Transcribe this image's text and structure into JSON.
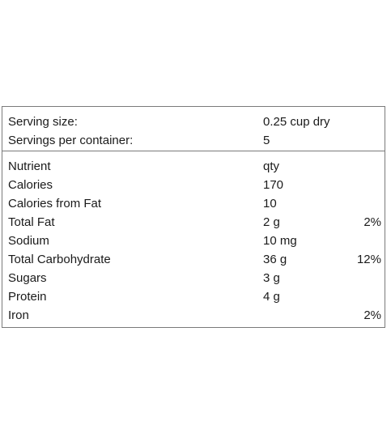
{
  "serving": {
    "rows": [
      {
        "label": "Serving size:",
        "value": "0.25 cup dry"
      },
      {
        "label": "Servings per container:",
        "value": "5"
      }
    ]
  },
  "nutrients": {
    "header": {
      "label": "Nutrient",
      "qty": "qty",
      "dv": ""
    },
    "rows": [
      {
        "label": "Calories",
        "qty": "170",
        "dv": ""
      },
      {
        "label": "Calories from Fat",
        "qty": "10",
        "dv": ""
      },
      {
        "label": "Total Fat",
        "qty": "2 g",
        "dv": "2%"
      },
      {
        "label": "Sodium",
        "qty": "10 mg",
        "dv": ""
      },
      {
        "label": "Total Carbohydrate",
        "qty": "36 g",
        "dv": "12%"
      },
      {
        "label": "Sugars",
        "qty": "3 g",
        "dv": ""
      },
      {
        "label": "Protein",
        "qty": "4 g",
        "dv": ""
      },
      {
        "label": "Iron",
        "qty": "",
        "dv": "2%"
      }
    ]
  }
}
